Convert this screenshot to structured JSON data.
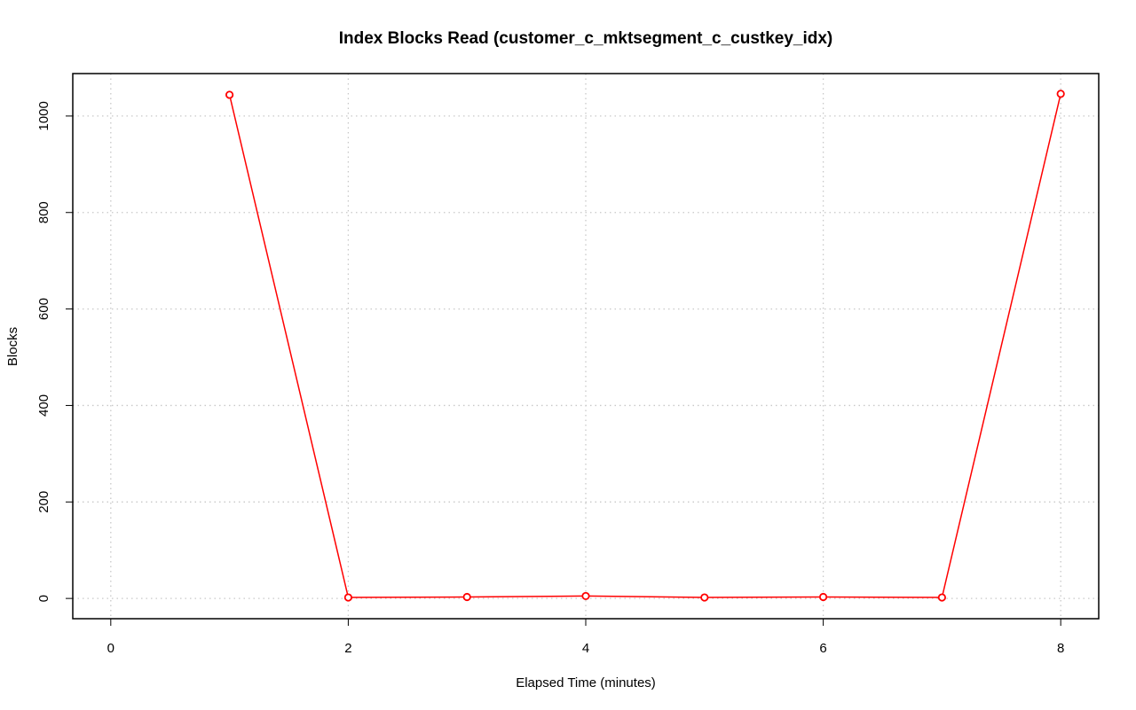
{
  "chart_data": {
    "type": "line",
    "title": "Index Blocks Read (customer_c_mktsegment_c_custkey_idx)",
    "xlabel": "Elapsed Time (minutes)",
    "ylabel": "Blocks",
    "xlim": [
      -0.32,
      8.32
    ],
    "ylim": [
      -42,
      1088
    ],
    "x_ticks": [
      0,
      2,
      4,
      6,
      8
    ],
    "y_ticks": [
      0,
      200,
      400,
      600,
      800,
      1000
    ],
    "grid": true,
    "grid_style": "dotted",
    "series": [
      {
        "color": "#ff0000",
        "marker": "open-circle",
        "x": [
          1,
          2,
          3,
          4,
          5,
          6,
          7,
          8
        ],
        "y": [
          1044,
          2,
          3,
          5,
          2,
          3,
          2,
          1046
        ]
      }
    ]
  }
}
